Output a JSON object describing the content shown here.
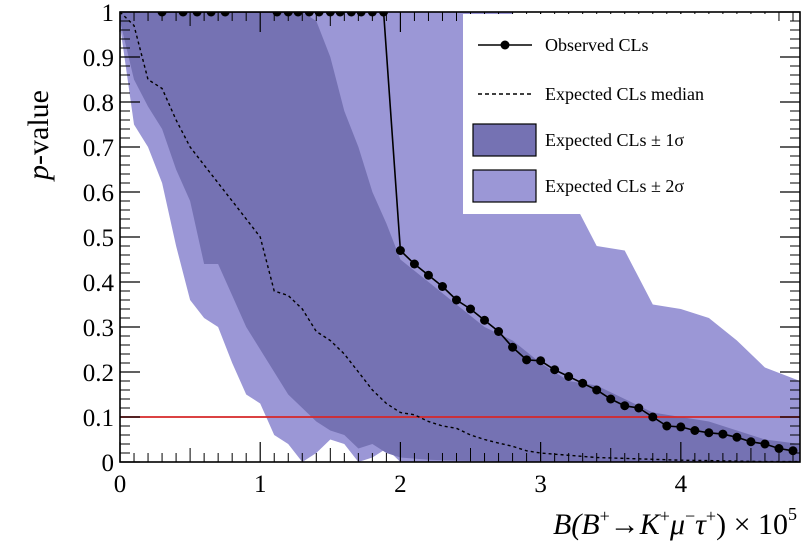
{
  "chart_data": {
    "type": "line",
    "xlabel": {
      "main": "B(B",
      "sup1": "+",
      "arrow": "→K",
      "sup2": "+",
      "mu": "μ",
      "sup3": "−",
      "tau": "τ",
      "sup4": "+",
      "tail": ") × 10",
      "exp": "5"
    },
    "ylabel": {
      "p": "p",
      "rest": "-value"
    },
    "xlim": [
      0,
      4.85
    ],
    "ylim": [
      0,
      1
    ],
    "grid": false,
    "legend_position": "top-right",
    "x_ticks": [
      "0",
      "1",
      "2",
      "3",
      "4"
    ],
    "y_ticks": [
      "0",
      "0.1",
      "0.2",
      "0.3",
      "0.4",
      "0.5",
      "0.6",
      "0.7",
      "0.8",
      "0.9",
      "1"
    ],
    "threshold_line": {
      "y": 0.1,
      "color": "#d62728"
    },
    "colors": {
      "band_2sigma": "#9b97d6",
      "band_1sigma": "#7572b3",
      "observed": "#000000"
    },
    "legend": {
      "observed": "Observed CLs",
      "median": "Expected CLs median",
      "one_sigma": "Expected CLs ± 1σ",
      "two_sigma": "Expected CLs ± 2σ"
    },
    "series": [
      {
        "name": "Observed CLs",
        "style": "line-markers",
        "x": [
          0.3,
          0.45,
          0.55,
          0.65,
          0.75,
          1.12,
          1.2,
          1.27,
          1.35,
          1.42,
          1.5,
          1.57,
          1.65,
          1.72,
          1.8,
          1.88,
          2.0,
          2.1,
          2.2,
          2.3,
          2.4,
          2.5,
          2.6,
          2.7,
          2.8,
          2.9,
          3.0,
          3.1,
          3.2,
          3.3,
          3.4,
          3.5,
          3.6,
          3.7,
          3.8,
          3.9,
          4.0,
          4.1,
          4.2,
          4.3,
          4.4,
          4.5,
          4.6,
          4.7,
          4.8
        ],
        "y": [
          1.0,
          1.0,
          1.0,
          1.0,
          1.0,
          1.0,
          1.0,
          1.0,
          1.0,
          1.0,
          1.0,
          1.0,
          1.0,
          1.0,
          1.0,
          1.0,
          0.47,
          0.44,
          0.415,
          0.39,
          0.36,
          0.34,
          0.315,
          0.29,
          0.255,
          0.227,
          0.225,
          0.205,
          0.19,
          0.175,
          0.16,
          0.14,
          0.125,
          0.12,
          0.1,
          0.08,
          0.078,
          0.07,
          0.065,
          0.062,
          0.055,
          0.045,
          0.04,
          0.03,
          0.025
        ]
      },
      {
        "name": "Expected CLs median",
        "style": "dashed",
        "x": [
          0.0,
          0.1,
          0.2,
          0.3,
          0.4,
          0.5,
          0.6,
          0.7,
          0.8,
          0.9,
          1.0,
          1.1,
          1.2,
          1.3,
          1.4,
          1.5,
          1.6,
          1.7,
          1.8,
          1.9,
          2.0,
          2.1,
          2.2,
          2.3,
          2.4,
          2.5,
          2.6,
          2.7,
          2.8,
          2.9,
          3.0,
          3.2,
          3.4,
          3.6,
          3.8,
          4.0,
          4.2,
          4.4,
          4.6,
          4.85
        ],
        "y": [
          1.0,
          0.97,
          0.85,
          0.83,
          0.76,
          0.7,
          0.66,
          0.62,
          0.58,
          0.54,
          0.5,
          0.38,
          0.37,
          0.34,
          0.29,
          0.27,
          0.24,
          0.2,
          0.16,
          0.13,
          0.11,
          0.105,
          0.09,
          0.08,
          0.075,
          0.06,
          0.05,
          0.042,
          0.035,
          0.025,
          0.02,
          0.015,
          0.01,
          0.008,
          0.006,
          0.004,
          0.003,
          0.002,
          0.001,
          0.001
        ]
      },
      {
        "name": "Expected CLs ± 1σ",
        "style": "band",
        "x": [
          0.0,
          0.1,
          0.2,
          0.3,
          0.4,
          0.5,
          0.6,
          0.7,
          0.8,
          0.9,
          1.0,
          1.1,
          1.2,
          1.3,
          1.4,
          1.5,
          1.6,
          1.7,
          1.8,
          1.9,
          2.0,
          2.2,
          2.4,
          2.6,
          2.8,
          3.0,
          3.2,
          3.4,
          3.6,
          3.8,
          4.0,
          4.2,
          4.4,
          4.6,
          4.85
        ],
        "lower": [
          0.98,
          0.85,
          0.79,
          0.74,
          0.65,
          0.58,
          0.44,
          0.44,
          0.37,
          0.3,
          0.25,
          0.2,
          0.15,
          0.12,
          0.09,
          0.07,
          0.06,
          0.03,
          0.04,
          0.02,
          0.01,
          0.005,
          0.003,
          0.002,
          0.0,
          0.0,
          0.0,
          0.0,
          0.0,
          0.0,
          0.0,
          0.0,
          0.0,
          0.0,
          0.0
        ],
        "upper": [
          1.0,
          1.0,
          1.0,
          1.0,
          1.0,
          1.0,
          1.0,
          1.0,
          1.0,
          1.0,
          1.0,
          1.0,
          1.0,
          1.0,
          0.98,
          0.9,
          0.78,
          0.7,
          0.6,
          0.53,
          0.45,
          0.4,
          0.35,
          0.3,
          0.27,
          0.22,
          0.18,
          0.17,
          0.14,
          0.11,
          0.1,
          0.09,
          0.07,
          0.05,
          0.04
        ]
      },
      {
        "name": "Expected CLs ± 2σ",
        "style": "band",
        "x": [
          0.0,
          0.1,
          0.2,
          0.3,
          0.4,
          0.5,
          0.6,
          0.7,
          0.8,
          0.9,
          1.0,
          1.1,
          1.2,
          1.3,
          1.4,
          1.5,
          1.6,
          1.7,
          1.8,
          1.9,
          2.0,
          2.2,
          2.4,
          2.6,
          2.8,
          3.0,
          3.2,
          3.4,
          3.6,
          3.8,
          4.0,
          4.2,
          4.4,
          4.6,
          4.85
        ],
        "lower": [
          0.97,
          0.75,
          0.7,
          0.62,
          0.48,
          0.36,
          0.32,
          0.3,
          0.22,
          0.15,
          0.13,
          0.06,
          0.04,
          0.0,
          0.02,
          0.05,
          0.04,
          0.0,
          0.01,
          0.03,
          0.0,
          0.0,
          0.0,
          0.0,
          0.0,
          0.0,
          0.0,
          0.0,
          0.0,
          0.0,
          0.0,
          0.0,
          0.0,
          0.0,
          0.0
        ],
        "upper": [
          1.0,
          1.0,
          1.0,
          1.0,
          1.0,
          1.0,
          1.0,
          1.0,
          1.0,
          1.0,
          1.0,
          1.0,
          1.0,
          1.0,
          1.0,
          1.0,
          1.0,
          1.0,
          1.0,
          1.0,
          1.0,
          1.0,
          1.0,
          1.0,
          1.0,
          0.6,
          0.6,
          0.48,
          0.47,
          0.35,
          0.34,
          0.32,
          0.27,
          0.21,
          0.18
        ]
      }
    ]
  }
}
